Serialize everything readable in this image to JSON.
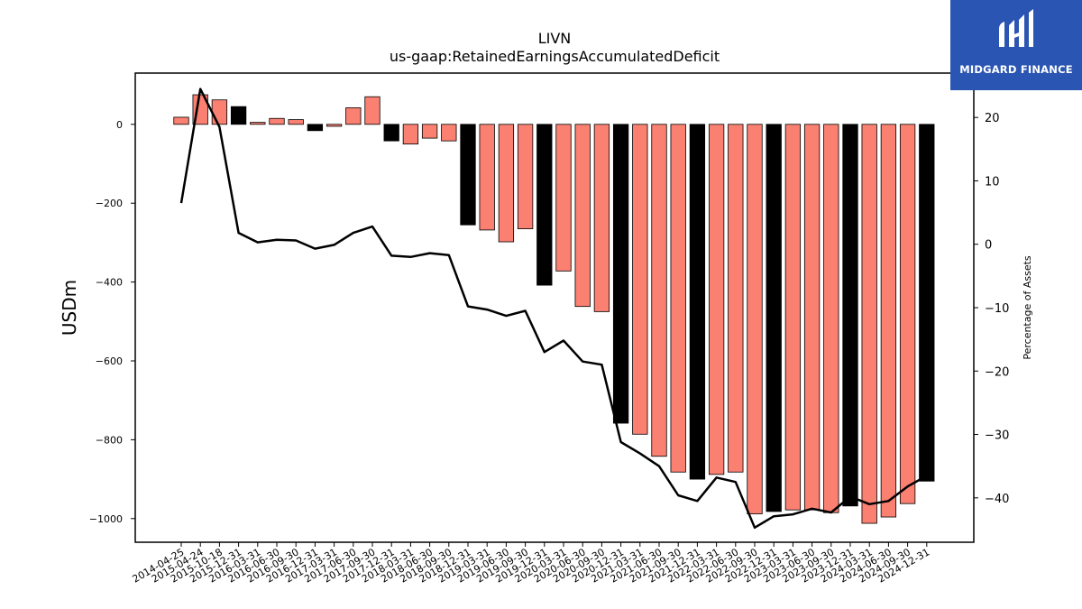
{
  "chart_data": {
    "type": "bar",
    "title": "LIVN",
    "subtitle": "us-gaap:RetainedEarningsAccumulatedDeficit",
    "ylabel": "USDm",
    "y2label": "Percentage of Assets",
    "ylim": [
      -1060,
      130
    ],
    "y2lim": [
      -47,
      27
    ],
    "yticks": [
      0,
      -200,
      -400,
      -600,
      -800,
      -1000
    ],
    "y2ticks": [
      20,
      10,
      0,
      -10,
      -20,
      -30,
      -40
    ],
    "colors": {
      "annual": "#000000",
      "quarterly": "#fa8072",
      "line": "#000000"
    },
    "categories": [
      "2014-04-25",
      "2015-04-24",
      "2015-10-18",
      "2015-12-31",
      "2016-03-31",
      "2016-06-30",
      "2016-09-30",
      "2016-12-31",
      "2017-03-31",
      "2017-06-30",
      "2017-09-30",
      "2017-12-31",
      "2018-03-31",
      "2018-06-30",
      "2018-09-30",
      "2018-12-31",
      "2019-03-31",
      "2019-06-30",
      "2019-09-30",
      "2019-12-31",
      "2020-03-31",
      "2020-06-30",
      "2020-09-30",
      "2020-12-31",
      "2021-03-31",
      "2021-06-30",
      "2021-09-30",
      "2021-12-31",
      "2022-03-31",
      "2022-06-30",
      "2022-09-30",
      "2022-12-31",
      "2023-03-31",
      "2023-06-30",
      "2023-09-30",
      "2023-12-31",
      "2024-03-31",
      "2024-06-30",
      "2024-09-30",
      "2024-12-31"
    ],
    "series": [
      {
        "kind": "bar",
        "values": [
          18,
          75,
          62,
          45,
          5,
          15,
          12,
          -16,
          -5,
          42,
          70,
          -42,
          -50,
          -35,
          -42,
          -255,
          -268,
          -298,
          -265,
          -408,
          -372,
          -462,
          -475,
          -758,
          -786,
          -842,
          -882,
          -900,
          -888,
          -882,
          -988,
          -982,
          -978,
          -978,
          -985,
          -968,
          -1012,
          -996,
          -962,
          -905
        ],
        "is_annual": [
          false,
          false,
          false,
          true,
          false,
          false,
          false,
          true,
          false,
          false,
          false,
          true,
          false,
          false,
          false,
          true,
          false,
          false,
          false,
          true,
          false,
          false,
          false,
          true,
          false,
          false,
          false,
          true,
          false,
          false,
          false,
          true,
          false,
          false,
          false,
          true,
          false,
          false,
          false,
          true
        ]
      },
      {
        "kind": "line",
        "axis": "right",
        "values": [
          6.5,
          24.5,
          18.5,
          1.8,
          0.3,
          0.7,
          0.6,
          -0.7,
          -0.1,
          1.8,
          2.8,
          -1.8,
          -2.0,
          -1.4,
          -1.7,
          -9.8,
          -10.3,
          -11.3,
          -10.5,
          -17.0,
          -15.2,
          -18.5,
          -19.0,
          -31.2,
          -33.0,
          -35.0,
          -39.6,
          -40.5,
          -36.8,
          -37.5,
          -44.7,
          -42.9,
          -42.6,
          -41.7,
          -42.3,
          -39.8,
          -41.0,
          -40.5,
          -38.2,
          -36.5
        ]
      }
    ]
  },
  "logo": {
    "text": "MIDGARD FINANCE",
    "icon": "midgard-finance-logo-icon",
    "bg_color": "#2b55b2"
  }
}
